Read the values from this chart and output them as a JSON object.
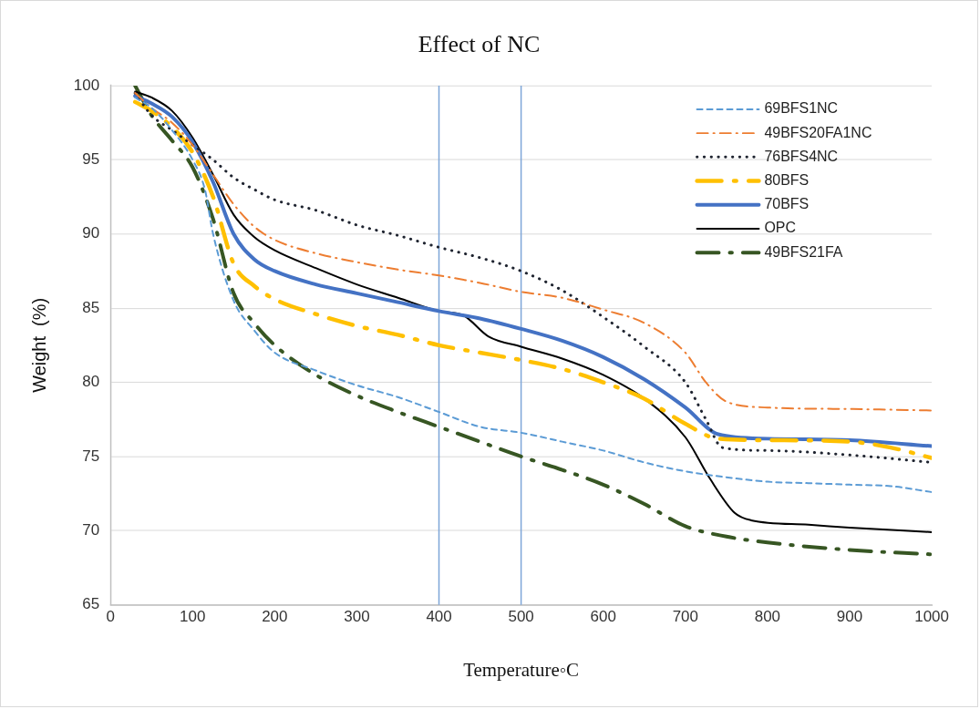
{
  "chart_data": {
    "type": "line",
    "title": "Effect of NC",
    "xlabel": "Temperature◦C",
    "ylabel": "Weight  (%)",
    "xlim": [
      0,
      1000
    ],
    "xticks": [
      0,
      100,
      200,
      300,
      400,
      500,
      600,
      700,
      800,
      900,
      1000
    ],
    "ylim": [
      65,
      100
    ],
    "yticks": [
      65,
      70,
      75,
      80,
      85,
      90,
      95,
      100
    ],
    "grid": "y",
    "legend": "top right",
    "marker": "none",
    "ref_lines": [
      {
        "axis": "x",
        "value": 400,
        "color": "#7ea6d8"
      },
      {
        "axis": "x",
        "value": 500,
        "color": "#7ea6d8"
      }
    ],
    "series": [
      {
        "name": "69BFS1NC",
        "color": "#5b9bd5",
        "line_style": "dashed",
        "x": [
          30,
          50,
          75,
          100,
          115,
          125,
          150,
          175,
          200,
          250,
          300,
          350,
          400,
          450,
          500,
          550,
          600,
          650,
          700,
          750,
          800,
          850,
          900,
          950,
          1000
        ],
        "values": [
          99.2,
          98.5,
          97,
          95,
          93,
          90,
          85.5,
          83.5,
          82,
          80.8,
          79.8,
          79,
          78,
          77,
          76.6,
          76,
          75.4,
          74.6,
          74,
          73.6,
          73.3,
          73.2,
          73.1,
          73,
          72.6
        ]
      },
      {
        "name": "49BFS20FA1NC",
        "color": "#ed7d31",
        "line_style": "dashed",
        "x": [
          30,
          50,
          75,
          100,
          125,
          150,
          175,
          200,
          250,
          300,
          350,
          400,
          450,
          500,
          550,
          600,
          650,
          700,
          725,
          750,
          800,
          900,
          1000
        ],
        "values": [
          99.5,
          98.5,
          97.5,
          96,
          94,
          92,
          90.5,
          89.6,
          88.7,
          88.1,
          87.6,
          87.2,
          86.7,
          86.1,
          85.7,
          84.9,
          84,
          82,
          80,
          78.7,
          78.3,
          78.2,
          78.1
        ]
      },
      {
        "name": "76BFS4NC",
        "color": "#1f2430",
        "line_style": "dotted",
        "x": [
          30,
          50,
          75,
          100,
          125,
          150,
          175,
          200,
          250,
          300,
          350,
          400,
          450,
          500,
          550,
          600,
          650,
          700,
          725,
          745,
          800,
          900,
          1000
        ],
        "values": [
          99.5,
          98,
          97,
          96,
          95,
          93.8,
          93,
          92.3,
          91.6,
          90.6,
          89.9,
          89.1,
          88.4,
          87.5,
          86.2,
          84.4,
          82.4,
          80,
          77.5,
          75.6,
          75.4,
          75.1,
          74.6
        ]
      },
      {
        "name": "80BFS",
        "color": "#ffc000",
        "line_style": "dashed",
        "x": [
          30,
          50,
          75,
          100,
          125,
          150,
          175,
          200,
          250,
          300,
          350,
          400,
          450,
          500,
          550,
          600,
          650,
          700,
          740,
          800,
          900,
          950,
          1000
        ],
        "values": [
          98.9,
          98.3,
          97.2,
          95.5,
          92.5,
          88,
          86.5,
          85.6,
          84.6,
          83.8,
          83.2,
          82.5,
          82,
          81.5,
          80.9,
          80,
          78.9,
          77.2,
          76.2,
          76.1,
          76,
          75.6,
          74.9
        ]
      },
      {
        "name": "70BFS",
        "color": "#4472c4",
        "line_style": "solid",
        "x": [
          30,
          50,
          75,
          100,
          125,
          150,
          175,
          200,
          250,
          300,
          350,
          400,
          450,
          500,
          550,
          600,
          650,
          700,
          740,
          800,
          900,
          1000
        ],
        "values": [
          99.3,
          98.8,
          97.9,
          96.2,
          93.5,
          90,
          88.3,
          87.5,
          86.6,
          86,
          85.4,
          84.8,
          84.3,
          83.6,
          82.8,
          81.7,
          80.2,
          78.3,
          76.5,
          76.2,
          76.1,
          75.7
        ]
      },
      {
        "name": "OPC",
        "color": "#000000",
        "line_style": "solid",
        "x": [
          30,
          50,
          75,
          100,
          125,
          150,
          175,
          200,
          250,
          300,
          350,
          400,
          430,
          460,
          500,
          550,
          600,
          650,
          700,
          730,
          760,
          780,
          850,
          900,
          1000
        ],
        "values": [
          99.6,
          99.2,
          98.3,
          96.5,
          94,
          91.3,
          89.8,
          88.9,
          87.7,
          86.6,
          85.7,
          84.8,
          84.5,
          83.1,
          82.4,
          81.6,
          80.5,
          78.9,
          76.3,
          73.5,
          71.2,
          70.7,
          70.4,
          70.2,
          69.9
        ]
      },
      {
        "name": "49BFS21FA",
        "color": "#375623",
        "line_style": "dashed",
        "x": [
          30,
          50,
          75,
          100,
          125,
          150,
          175,
          200,
          250,
          300,
          350,
          400,
          450,
          500,
          550,
          600,
          650,
          700,
          750,
          800,
          900,
          1000
        ],
        "values": [
          100,
          98,
          96.3,
          94.5,
          91,
          86,
          84,
          82.5,
          80.5,
          79.1,
          78,
          77,
          76,
          75,
          74.1,
          73.1,
          71.8,
          70.3,
          69.6,
          69.2,
          68.7,
          68.4
        ]
      }
    ]
  }
}
